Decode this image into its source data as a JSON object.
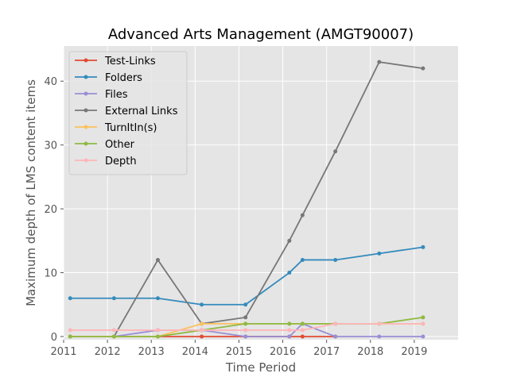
{
  "chart_data": {
    "type": "line",
    "title": "Advanced Arts Management (AMGT90007)",
    "xlabel": "Time Period",
    "ylabel": "Maximum depth of LMS content items",
    "xlim": [
      2011,
      2020
    ],
    "ylim": [
      -0.5,
      45.5
    ],
    "xticks": [
      2011,
      2012,
      2013,
      2014,
      2015,
      2016,
      2017,
      2018,
      2019
    ],
    "yticks": [
      0,
      10,
      20,
      30,
      40
    ],
    "grid": true,
    "legend_position": "top-left",
    "series": [
      {
        "name": "Test-Links",
        "color": "#e24a33",
        "x": [
          2011.15,
          2012.15,
          2013.15,
          2014.15,
          2015.15,
          2016.15,
          2016.45,
          2017.2
        ],
        "y": [
          0,
          0,
          0,
          0,
          0,
          0,
          0,
          0
        ]
      },
      {
        "name": "Folders",
        "color": "#348abd",
        "x": [
          2011.15,
          2012.15,
          2013.15,
          2014.15,
          2015.15,
          2016.15,
          2016.45,
          2017.2,
          2018.2,
          2019.2
        ],
        "y": [
          6,
          6,
          6,
          5,
          5,
          10,
          12,
          12,
          13,
          14
        ]
      },
      {
        "name": "Files",
        "color": "#988ed5",
        "x": [
          2011.15,
          2012.15,
          2013.15,
          2014.15,
          2015.15,
          2016.15,
          2016.45,
          2017.2,
          2018.2,
          2019.2
        ],
        "y": [
          0,
          0,
          1,
          1,
          0,
          0,
          2,
          0,
          0,
          0
        ]
      },
      {
        "name": "External Links",
        "color": "#777777",
        "x": [
          2012.15,
          2013.15,
          2014.15,
          2015.15,
          2016.15,
          2016.45,
          2017.2,
          2018.2,
          2019.2
        ],
        "y": [
          0,
          12,
          2,
          3,
          15,
          19,
          29,
          43,
          42
        ]
      },
      {
        "name": "TurnItIn(s)",
        "color": "#fbc15e",
        "x": [
          2011.15,
          2012.15,
          2013.15,
          2014.15,
          2015.15,
          2016.15,
          2016.45,
          2017.2,
          2018.2,
          2019.2
        ],
        "y": [
          0,
          0,
          0,
          2,
          2,
          2,
          2,
          2,
          2,
          2
        ]
      },
      {
        "name": "Other",
        "color": "#8eba42",
        "x": [
          2011.15,
          2012.15,
          2013.15,
          2014.15,
          2015.15,
          2016.15,
          2016.45,
          2017.2,
          2018.2,
          2019.2
        ],
        "y": [
          0,
          0,
          0,
          1,
          2,
          2,
          2,
          2,
          2,
          3
        ]
      },
      {
        "name": "Depth",
        "color": "#ffb5b8",
        "x": [
          2011.15,
          2012.15,
          2013.15,
          2014.15,
          2015.15,
          2016.15,
          2016.45,
          2017.2,
          2018.2,
          2019.2
        ],
        "y": [
          1,
          1,
          1,
          1,
          1,
          1,
          1,
          2,
          2,
          2
        ]
      }
    ]
  }
}
